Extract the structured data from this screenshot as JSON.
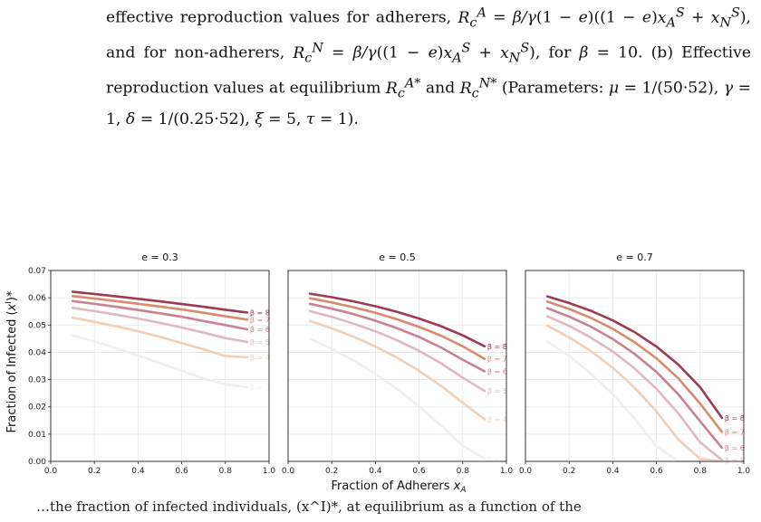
{
  "caption": {
    "line1": "effective reproduction values for adherers, R_c^A = β/γ (1 − e)((1 − e)x_A^S + x_N^S),",
    "line2": "and for non-adherers, R_c^N = β/γ ((1 − e)x_A^S + x_N^S), for β = 10. (b) Effective",
    "line3": "reproduction values at equilibrium R_c^{A*} and R_c^{N*} (Parameters: μ = 1/(50·52), γ =",
    "line4": "1, δ = 1/(0.25·52), ξ = 5, τ = 1)."
  },
  "figure": {
    "xlabel": "Fraction of Adherers x_A",
    "ylabel": "Fraction of Infected (x^I)*"
  },
  "chart_data": [
    {
      "type": "line",
      "title": "e = 0.3",
      "xlim": [
        0.0,
        1.0
      ],
      "ylim": [
        0.0,
        0.07
      ],
      "xticks": [
        "0.0",
        "0.2",
        "0.4",
        "0.6",
        "0.8",
        "1.0"
      ],
      "yticks": [
        "0.00",
        "0.01",
        "0.02",
        "0.03",
        "0.04",
        "0.05",
        "0.06",
        "0.07"
      ],
      "grid": true,
      "x": [
        0.1,
        0.2,
        0.3,
        0.4,
        0.5,
        0.6,
        0.7,
        0.8,
        0.9
      ],
      "series": [
        {
          "name": "β = 8",
          "color": "#9e3a52",
          "values": [
            0.0622,
            0.0614,
            0.0605,
            0.0596,
            0.0587,
            0.0577,
            0.0567,
            0.0556,
            0.0546
          ]
        },
        {
          "name": "β = 7",
          "color": "#d98a6c",
          "values": [
            0.0606,
            0.0597,
            0.0588,
            0.0578,
            0.0568,
            0.0557,
            0.0545,
            0.0532,
            0.052
          ]
        },
        {
          "name": "β = 6",
          "color": "#c98292",
          "values": [
            0.0588,
            0.0578,
            0.0567,
            0.0555,
            0.0543,
            0.053,
            0.0515,
            0.05,
            0.0484
          ]
        },
        {
          "name": "β = 5",
          "color": "#e0b8c1",
          "values": [
            0.0563,
            0.0551,
            0.0538,
            0.0524,
            0.0508,
            0.0491,
            0.0472,
            0.0452,
            0.0438
          ]
        },
        {
          "name": "β = 4",
          "color": "#f0cfb5",
          "values": [
            0.0527,
            0.0512,
            0.0495,
            0.0477,
            0.0457,
            0.0434,
            0.0411,
            0.0386,
            0.0382
          ]
        },
        {
          "name": "β = 3",
          "color": "#f0eef0",
          "values": [
            0.0462,
            0.044,
            0.0415,
            0.0388,
            0.036,
            0.0332,
            0.0304,
            0.0283,
            0.0272
          ]
        }
      ]
    },
    {
      "type": "line",
      "title": "e = 0.5",
      "xlim": [
        0.0,
        1.0
      ],
      "ylim": [
        0.0,
        0.07
      ],
      "xticks": [
        "0.0",
        "0.2",
        "0.4",
        "0.6",
        "0.8",
        "1.0"
      ],
      "yticks": [],
      "grid": true,
      "x": [
        0.1,
        0.2,
        0.3,
        0.4,
        0.5,
        0.6,
        0.7,
        0.8,
        0.9
      ],
      "series": [
        {
          "name": "β = 8",
          "color": "#9e3a52",
          "values": [
            0.0615,
            0.0602,
            0.0587,
            0.0569,
            0.0548,
            0.0524,
            0.0496,
            0.0462,
            0.0422
          ]
        },
        {
          "name": "β = 7",
          "color": "#d98a6c",
          "values": [
            0.0598,
            0.0583,
            0.0565,
            0.0545,
            0.0521,
            0.0493,
            0.0461,
            0.0422,
            0.0376
          ]
        },
        {
          "name": "β = 6",
          "color": "#c98292",
          "values": [
            0.0578,
            0.056,
            0.054,
            0.0516,
            0.0488,
            0.0456,
            0.0418,
            0.0373,
            0.033
          ]
        },
        {
          "name": "β = 5",
          "color": "#e0b8c1",
          "values": [
            0.0551,
            0.053,
            0.0505,
            0.0477,
            0.0444,
            0.0405,
            0.036,
            0.0307,
            0.0258
          ]
        },
        {
          "name": "β = 4",
          "color": "#f0cfb5",
          "values": [
            0.0515,
            0.0488,
            0.0457,
            0.0421,
            0.038,
            0.0332,
            0.0277,
            0.0215,
            0.0155
          ]
        },
        {
          "name": "β = 3",
          "color": "#f0eef0",
          "values": [
            0.045,
            0.0413,
            0.037,
            0.0321,
            0.0265,
            0.0202,
            0.0132,
            0.0058,
            0.001
          ]
        }
      ]
    },
    {
      "type": "line",
      "title": "e = 0.7",
      "xlim": [
        0.0,
        1.0
      ],
      "ylim": [
        0.0,
        0.07
      ],
      "xticks": [
        "0.0",
        "0.2",
        "0.4",
        "0.6",
        "0.8",
        "1.0"
      ],
      "yticks": [],
      "grid": true,
      "x": [
        0.1,
        0.2,
        0.3,
        0.4,
        0.5,
        0.6,
        0.7,
        0.8,
        0.9
      ],
      "series": [
        {
          "name": "β = 8",
          "color": "#9e3a52",
          "values": [
            0.0605,
            0.0581,
            0.0552,
            0.0517,
            0.0474,
            0.0421,
            0.0355,
            0.0272,
            0.016
          ]
        },
        {
          "name": "β = 7",
          "color": "#d98a6c",
          "values": [
            0.0586,
            0.0559,
            0.0526,
            0.0486,
            0.0437,
            0.0378,
            0.0305,
            0.0212,
            0.0108
          ]
        },
        {
          "name": "β = 6",
          "color": "#c98292",
          "values": [
            0.0562,
            0.0531,
            0.0494,
            0.0449,
            0.0394,
            0.0328,
            0.0246,
            0.0147,
            0.005
          ]
        },
        {
          "name": "β = 5",
          "color": "#e0b8c1",
          "values": [
            0.0532,
            0.0497,
            0.0454,
            0.0403,
            0.0341,
            0.0266,
            0.0176,
            0.007,
            0.0005
          ]
        },
        {
          "name": "β = 4",
          "color": "#f0cfb5",
          "values": [
            0.0498,
            0.0455,
            0.0404,
            0.0343,
            0.027,
            0.0183,
            0.008,
            0.001,
            0.0
          ]
        },
        {
          "name": "β = 3",
          "color": "#f0eef0",
          "values": [
            0.044,
            0.0386,
            0.0322,
            0.0246,
            0.0157,
            0.0055,
            0.0,
            0.0,
            0.0
          ]
        }
      ]
    }
  ],
  "bottom_text": "…the fraction of infected individuals, (x^I)*, at equilibrium as a function of the"
}
